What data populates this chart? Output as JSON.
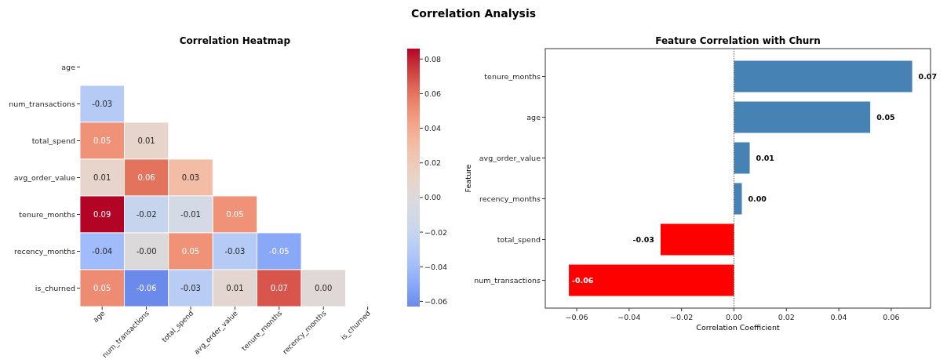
{
  "chart_data": [
    {
      "type": "heatmap",
      "title": "Correlation Heatmap",
      "annotations": [
        "Correlation Analysis"
      ],
      "categories": [
        "age",
        "num_transactions",
        "total_spend",
        "avg_order_value",
        "tenure_months",
        "recency_months",
        "is_churned"
      ],
      "y_categories": [
        "age",
        "num_transactions",
        "total_spend",
        "avg_order_value",
        "tenure_months",
        "recency_months",
        "is_churned"
      ],
      "cells": [
        [
          null,
          null,
          null,
          null,
          null,
          null,
          null
        ],
        [
          -0.03,
          null,
          null,
          null,
          null,
          null,
          null
        ],
        [
          0.05,
          0.01,
          null,
          null,
          null,
          null,
          null
        ],
        [
          0.01,
          0.06,
          0.03,
          null,
          null,
          null,
          null
        ],
        [
          0.086,
          -0.02,
          -0.01,
          0.05,
          null,
          null,
          null
        ],
        [
          -0.04,
          -0.001,
          0.05,
          -0.03,
          -0.05,
          null,
          null
        ],
        [
          0.052,
          -0.063,
          -0.028,
          0.006,
          0.068,
          0.003,
          null
        ]
      ],
      "cell_labels": [
        [
          null,
          null,
          null,
          null,
          null,
          null,
          null
        ],
        [
          "-0.03",
          null,
          null,
          null,
          null,
          null,
          null
        ],
        [
          "0.05",
          "0.01",
          null,
          null,
          null,
          null,
          null
        ],
        [
          "0.01",
          "0.06",
          "0.03",
          null,
          null,
          null,
          null
        ],
        [
          "0.09",
          "-0.02",
          "-0.01",
          "0.05",
          null,
          null,
          null
        ],
        [
          "-0.04",
          "-0.00",
          "0.05",
          "-0.03",
          "-0.05",
          null,
          null
        ],
        [
          "0.05",
          "-0.06",
          "-0.03",
          "0.01",
          "0.07",
          "0.00",
          null
        ]
      ],
      "clim": [
        -0.063,
        0.086
      ],
      "cticks": [
        {
          "value": -0.06,
          "label": "−0.06"
        },
        {
          "value": -0.04,
          "label": "−0.04"
        },
        {
          "value": -0.02,
          "label": "−0.02"
        },
        {
          "value": 0,
          "label": "0.00"
        },
        {
          "value": 0.02,
          "label": "0.02"
        },
        {
          "value": 0.04,
          "label": "0.04"
        },
        {
          "value": 0.06,
          "label": "0.06"
        },
        {
          "value": 0.08,
          "label": "0.08"
        }
      ]
    },
    {
      "type": "bar",
      "orientation": "horizontal",
      "title": "Feature Correlation with Churn",
      "xlabel": "Correlation Coefficient",
      "ylabel": "Feature",
      "categories": [
        "tenure_months",
        "age",
        "avg_order_value",
        "recency_months",
        "total_spend",
        "num_transactions"
      ],
      "values": [
        0.068,
        0.052,
        0.006,
        0.003,
        -0.028,
        -0.063
      ],
      "colors": [
        "#4682b4",
        "#4682b4",
        "#4682b4",
        "#4682b4",
        "#ff0000",
        "#ff0000"
      ],
      "value_labels": [
        "0.07",
        "0.05",
        "0.01",
        "0.00",
        "-0.03",
        "-0.06"
      ],
      "xlim": [
        -0.072,
        0.075
      ],
      "xticks": [
        {
          "value": -0.06,
          "label": "−0.06"
        },
        {
          "value": -0.04,
          "label": "−0.04"
        },
        {
          "value": -0.02,
          "label": "−0.02"
        },
        {
          "value": 0,
          "label": "0.00"
        },
        {
          "value": 0.02,
          "label": "0.02"
        },
        {
          "value": 0.04,
          "label": "0.04"
        },
        {
          "value": 0.06,
          "label": "0.06"
        }
      ],
      "ref_lines": [
        {
          "axis": "x",
          "value": 0,
          "color": "#555555",
          "line_style": "dotted"
        }
      ]
    }
  ]
}
